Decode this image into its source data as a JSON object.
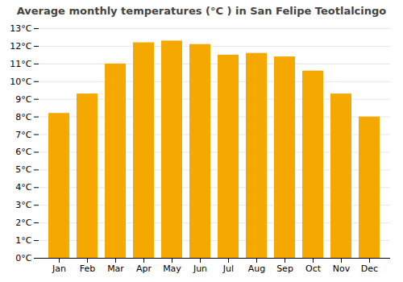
{
  "chart_data": {
    "type": "bar",
    "title": "Average monthly temperatures (°C ) in San Felipe Teotlalcingo",
    "categories": [
      "Jan",
      "Feb",
      "Mar",
      "Apr",
      "May",
      "Jun",
      "Jul",
      "Aug",
      "Sep",
      "Oct",
      "Nov",
      "Dec"
    ],
    "values": [
      8.2,
      9.3,
      11.0,
      12.2,
      12.3,
      12.1,
      11.5,
      11.6,
      11.4,
      10.6,
      9.3,
      8.0
    ],
    "color": "#F5A800",
    "ylim": [
      0,
      13
    ],
    "yticks": [
      {
        "value": 0,
        "label": "0°C"
      },
      {
        "value": 1,
        "label": "1°C"
      },
      {
        "value": 2,
        "label": "2°C"
      },
      {
        "value": 3,
        "label": "3°C"
      },
      {
        "value": 4,
        "label": "4°C"
      },
      {
        "value": 5,
        "label": "5°C"
      },
      {
        "value": 6,
        "label": "6°C"
      },
      {
        "value": 7,
        "label": "7°C"
      },
      {
        "value": 8,
        "label": "8°C"
      },
      {
        "value": 9,
        "label": "9°C"
      },
      {
        "value": 10,
        "label": "10°C"
      },
      {
        "value": 11,
        "label": "11°C"
      },
      {
        "value": 12,
        "label": "12°C"
      },
      {
        "value": 13,
        "label": "13°C"
      }
    ],
    "grid": true
  }
}
